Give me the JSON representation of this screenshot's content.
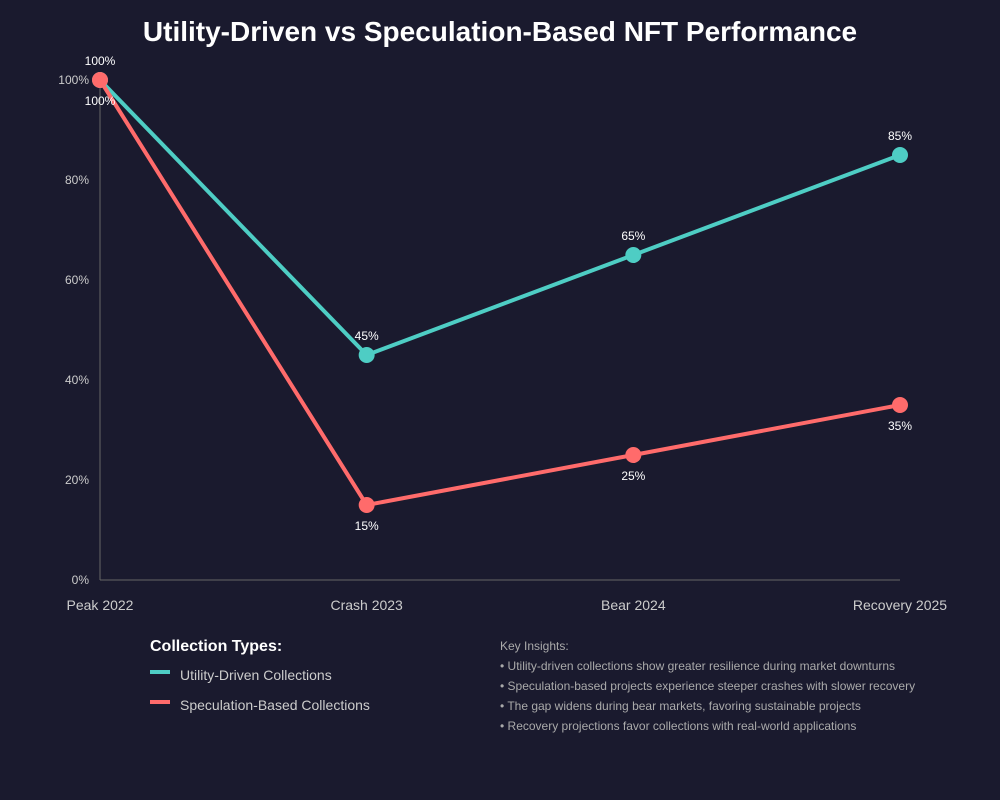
{
  "chart_data": {
    "type": "line",
    "title": "Utility-Driven vs Speculation-Based NFT Performance",
    "xlabel": "",
    "ylabel": "",
    "categories": [
      "Peak 2022",
      "Crash 2023",
      "Bear 2024",
      "Recovery 2025"
    ],
    "ylim": [
      0,
      100
    ],
    "yticks": [
      0,
      20,
      40,
      60,
      80,
      100
    ],
    "ytick_labels": [
      "0%",
      "20%",
      "40%",
      "60%",
      "80%",
      "100%"
    ],
    "series": [
      {
        "name": "Utility-Driven Collections",
        "color": "#4ecdc4",
        "values": [
          100,
          45,
          65,
          85
        ],
        "labels": [
          "100%",
          "45%",
          "65%",
          "85%"
        ],
        "label_position": "above"
      },
      {
        "name": "Speculation-Based Collections",
        "color": "#ff6b6b",
        "values": [
          100,
          15,
          25,
          35
        ],
        "labels": [
          "100%",
          "15%",
          "25%",
          "35%"
        ],
        "label_position": "below"
      }
    ],
    "legend": {
      "title": "Collection Types:",
      "placement": "bottom-left"
    },
    "grid": false
  },
  "insights": {
    "title": "Key Insights:",
    "items": [
      "• Utility-driven collections show greater resilience during market downturns",
      "• Speculation-based projects experience steeper crashes with slower recovery",
      "• The gap widens during bear markets, favoring sustainable projects",
      "• Recovery projections favor collections with real-world applications"
    ]
  },
  "colors": {
    "background": "#1a1a2e",
    "axis": "#666666"
  }
}
